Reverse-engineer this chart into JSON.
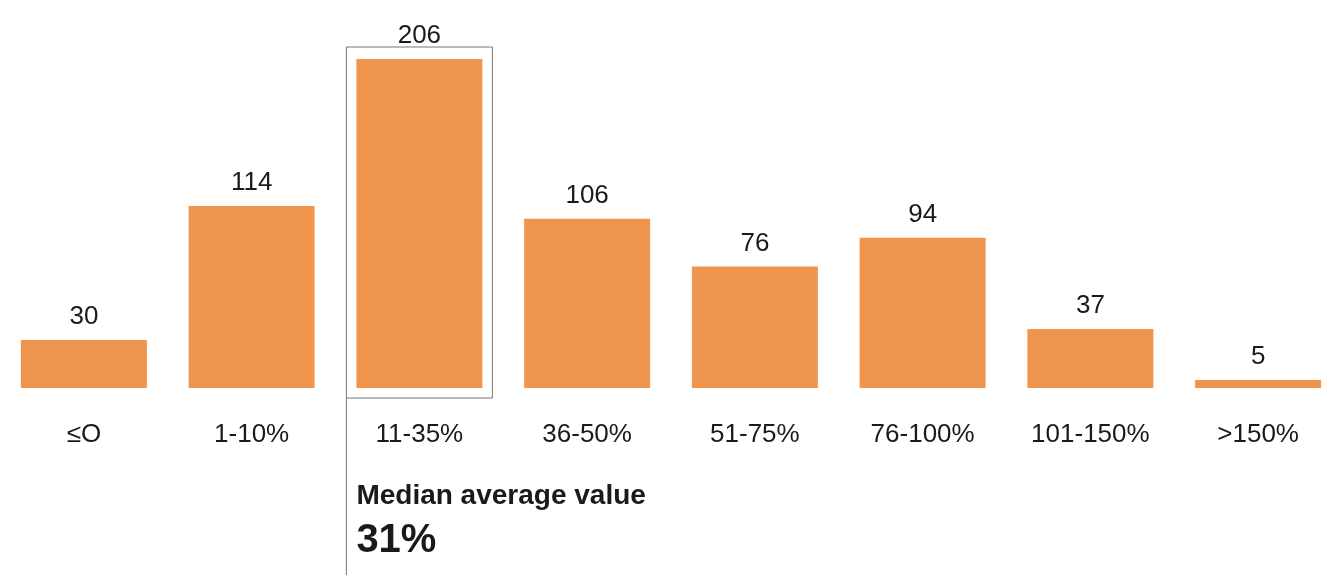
{
  "chart_data": {
    "type": "bar",
    "categories": [
      "≤O",
      "1-10%",
      "11-35%",
      "36-50%",
      "51-75%",
      "76-100%",
      "101-150%",
      ">150%"
    ],
    "values": [
      30,
      114,
      206,
      106,
      76,
      94,
      37,
      5
    ],
    "color": "#f0954d",
    "data_labels": true,
    "annotations": [
      "Median average value",
      "31%"
    ]
  }
}
